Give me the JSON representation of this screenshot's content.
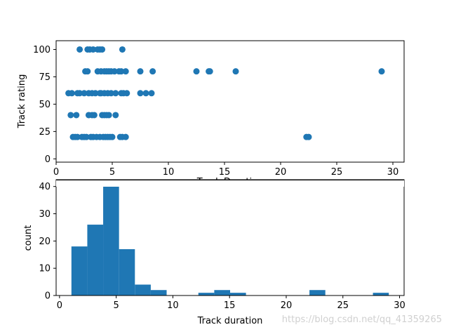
{
  "chart_data": [
    {
      "type": "scatter",
      "xlabel": "Track Duration",
      "ylabel": "Track rating",
      "xlim": [
        0,
        31
      ],
      "ylim": [
        -3,
        108
      ],
      "xticks": [
        0,
        5,
        10,
        15,
        20,
        25,
        30
      ],
      "yticks": [
        0,
        25,
        50,
        75,
        100
      ],
      "color": "#1f77b4",
      "grid": false,
      "points": [
        [
          2.1,
          100
        ],
        [
          2.8,
          100
        ],
        [
          3.0,
          100
        ],
        [
          3.3,
          100
        ],
        [
          3.7,
          100
        ],
        [
          3.9,
          100
        ],
        [
          4.1,
          100
        ],
        [
          5.9,
          100
        ],
        [
          2.6,
          80
        ],
        [
          2.8,
          80
        ],
        [
          3.7,
          80
        ],
        [
          4.0,
          80
        ],
        [
          4.3,
          80
        ],
        [
          4.5,
          80
        ],
        [
          4.7,
          80
        ],
        [
          4.9,
          80
        ],
        [
          5.2,
          80
        ],
        [
          5.6,
          80
        ],
        [
          5.8,
          80
        ],
        [
          6.2,
          80
        ],
        [
          7.5,
          80
        ],
        [
          8.6,
          80
        ],
        [
          12.5,
          80
        ],
        [
          13.6,
          80
        ],
        [
          13.7,
          80
        ],
        [
          16.0,
          80
        ],
        [
          29.0,
          80
        ],
        [
          1.1,
          60
        ],
        [
          1.4,
          60
        ],
        [
          1.9,
          60
        ],
        [
          2.1,
          60
        ],
        [
          2.5,
          60
        ],
        [
          2.9,
          60
        ],
        [
          3.2,
          60
        ],
        [
          3.5,
          60
        ],
        [
          3.9,
          60
        ],
        [
          4.0,
          60
        ],
        [
          4.3,
          60
        ],
        [
          4.6,
          60
        ],
        [
          4.9,
          60
        ],
        [
          5.3,
          60
        ],
        [
          5.8,
          60
        ],
        [
          6.0,
          60
        ],
        [
          6.3,
          60
        ],
        [
          7.5,
          60
        ],
        [
          8.0,
          60
        ],
        [
          8.5,
          60
        ],
        [
          1.3,
          40
        ],
        [
          1.8,
          40
        ],
        [
          2.9,
          40
        ],
        [
          3.2,
          40
        ],
        [
          3.4,
          40
        ],
        [
          4.1,
          40
        ],
        [
          4.3,
          40
        ],
        [
          4.5,
          40
        ],
        [
          4.7,
          40
        ],
        [
          5.3,
          40
        ],
        [
          1.5,
          20
        ],
        [
          1.7,
          20
        ],
        [
          1.9,
          20
        ],
        [
          2.3,
          20
        ],
        [
          2.5,
          20
        ],
        [
          2.7,
          20
        ],
        [
          3.1,
          20
        ],
        [
          3.3,
          20
        ],
        [
          3.6,
          20
        ],
        [
          3.9,
          20
        ],
        [
          4.2,
          20
        ],
        [
          4.4,
          20
        ],
        [
          4.6,
          20
        ],
        [
          4.8,
          20
        ],
        [
          5.0,
          20
        ],
        [
          5.7,
          20
        ],
        [
          5.9,
          20
        ],
        [
          6.2,
          20
        ],
        [
          22.3,
          20
        ],
        [
          22.5,
          20
        ]
      ]
    },
    {
      "type": "bar",
      "xlabel": "Track duration",
      "ylabel": "count",
      "xlim": [
        -0.3,
        30.4
      ],
      "ylim": [
        0,
        42.5
      ],
      "xticks": [
        0,
        5,
        10,
        15,
        20,
        25,
        30
      ],
      "yticks": [
        0,
        10,
        20,
        30,
        40
      ],
      "color": "#1f77b4",
      "grid": false,
      "bin_edges": [
        1.05,
        2.45,
        3.85,
        5.25,
        6.65,
        8.05,
        9.45,
        10.85,
        12.25,
        13.65,
        15.05,
        16.45,
        17.85,
        19.25,
        20.65,
        22.05,
        23.45,
        24.85,
        26.25,
        27.65,
        29.05
      ],
      "values": [
        18,
        26,
        41,
        17,
        4,
        2,
        0,
        0,
        1,
        2,
        1,
        0,
        0,
        0,
        0,
        2,
        0,
        0,
        0,
        1
      ]
    }
  ],
  "watermark": "https://blog.csdn.net/qq_41359265"
}
